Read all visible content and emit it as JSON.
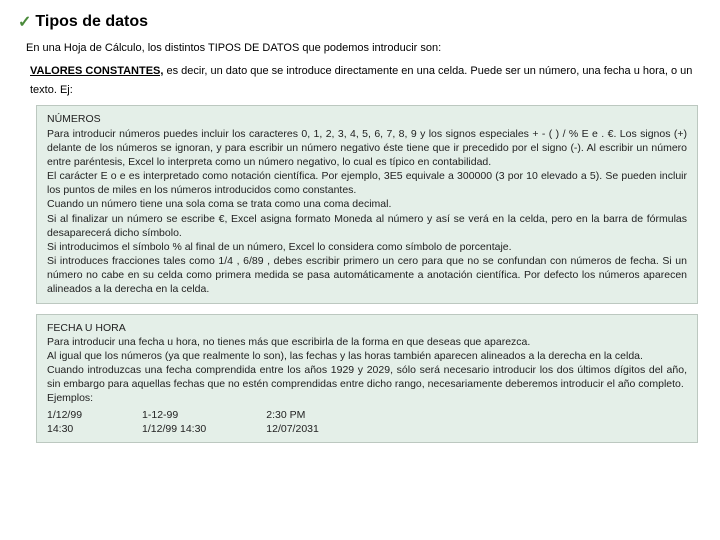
{
  "title_check": "✓",
  "title": "Tipos de datos",
  "intro": "En una Hoja de Cálculo, los distintos TIPOS DE DATOS que podemos introducir son:",
  "subintro_bold": "VALORES CONSTANTES,",
  "subintro_rest": " es decir, un dato que se introduce directamente en una celda. Puede ser un número, una fecha u hora, o un texto. Ej:",
  "box1": {
    "heading": "NÚMEROS",
    "p1": "Para introducir números puedes incluir los caracteres 0, 1, 2, 3, 4, 5, 6, 7, 8, 9 y los signos especiales + - ( ) / % E e . €. Los signos (+) delante de los números se ignoran, y para escribir un número negativo éste tiene que ir precedido por el signo (-). Al escribir un número entre paréntesis, Excel lo interpreta como un número negativo, lo cual es típico en contabilidad.",
    "p2": "El carácter E o e es interpretado como notación científica. Por ejemplo, 3E5 equivale a 300000 (3 por 10 elevado a 5). Se pueden incluir los puntos de miles en los números introducidos como constantes.",
    "p3": "Cuando un número tiene una sola coma se trata como una coma decimal.",
    "p4": "Si al finalizar un número se escribe €, Excel asigna formato Moneda al número y así se verá en la celda, pero en la barra de fórmulas desaparecerá dicho símbolo.",
    "p5": "Si introducimos el símbolo % al final de un número, Excel lo considera como símbolo de porcentaje.",
    "p6": "Si introduces fracciones tales como 1/4 , 6/89 , debes escribir primero un cero para que no se confundan con números de fecha. Si un número no cabe en su celda como primera medida se pasa automáticamente a anotación científica. Por defecto los números aparecen alineados a la derecha en la celda."
  },
  "box2": {
    "heading": "FECHA U HORA",
    "p1": "Para introducir una fecha u hora, no tienes más que escribirla de la forma en que deseas que aparezca.",
    "p2": "Al igual que los números (ya que realmente lo son), las fechas y las horas también aparecen alineados a la derecha en la celda.",
    "p3": "Cuando introduzcas una fecha comprendida entre los años 1929 y 2029, sólo será necesario introducir los dos últimos dígitos del año, sin embargo para aquellas fechas que no estén comprendidas entre dicho rango, necesariamente deberemos introducir el año completo.",
    "examples_label": "Ejemplos:",
    "col1a": "1/12/99",
    "col1b": "14:30",
    "col2a": "1-12-99",
    "col2b": "1/12/99 14:30",
    "col3a": "2:30 PM",
    "col3b": "12/07/2031"
  },
  "colors": {
    "box_bg": "#e4efe8",
    "box_border": "#bcc8c0",
    "check": "#4a8a3a"
  }
}
